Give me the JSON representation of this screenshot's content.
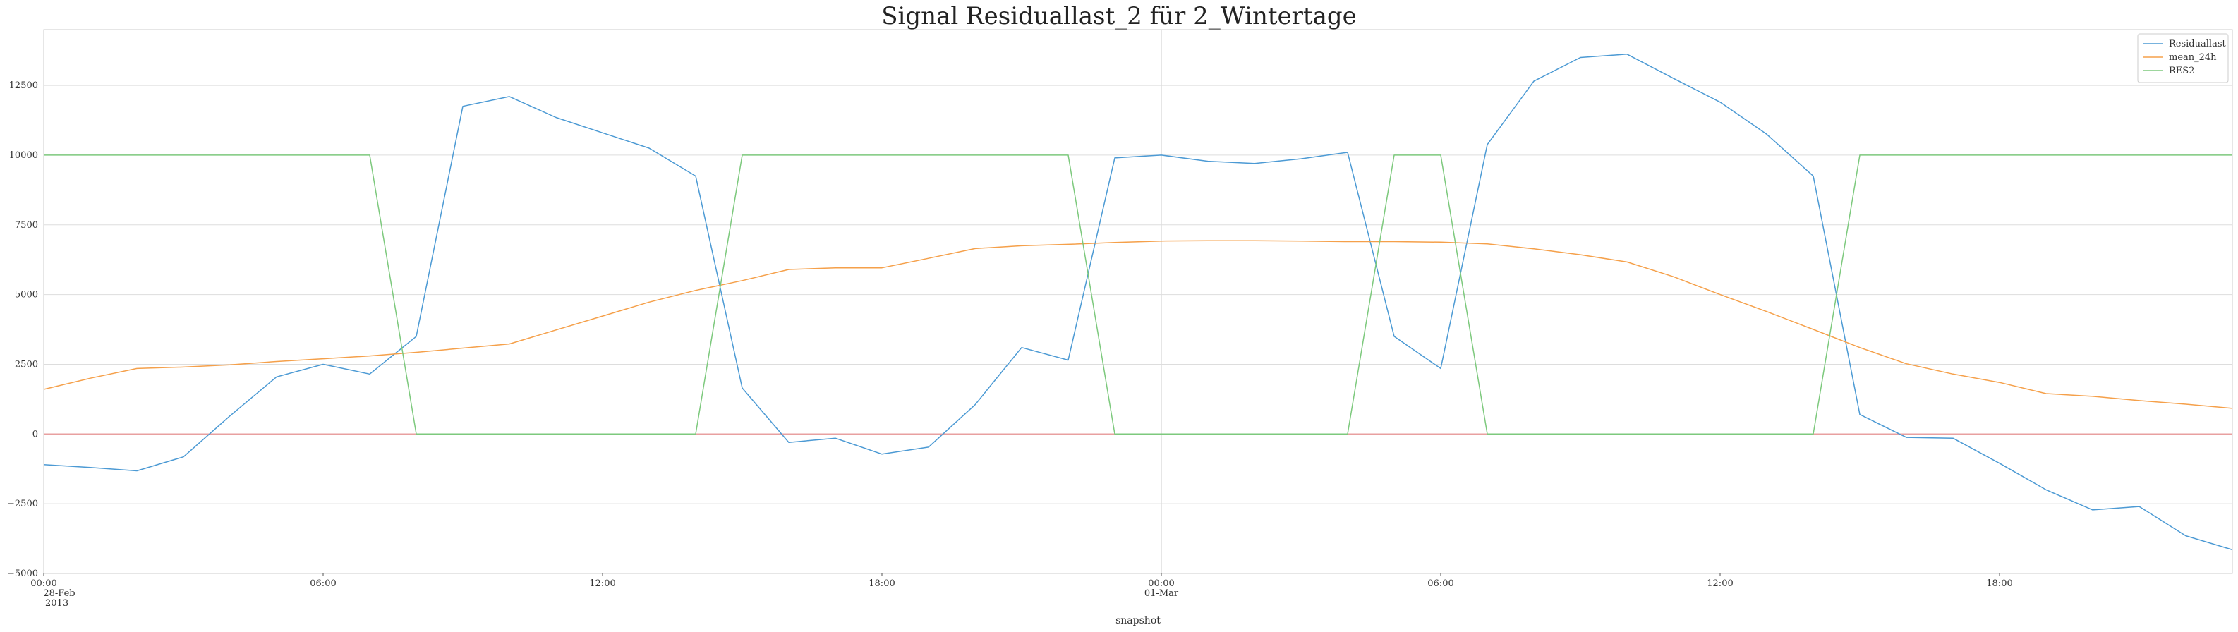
{
  "chart_data": {
    "type": "line",
    "title": "Signal Residuallast_2 für 2_Wintertage",
    "xlabel": "snapshot",
    "ylabel": "",
    "x": [
      "2013-02-28 00:00",
      "2013-02-28 01:00",
      "2013-02-28 02:00",
      "2013-02-28 03:00",
      "2013-02-28 04:00",
      "2013-02-28 05:00",
      "2013-02-28 06:00",
      "2013-02-28 07:00",
      "2013-02-28 08:00",
      "2013-02-28 09:00",
      "2013-02-28 10:00",
      "2013-02-28 11:00",
      "2013-02-28 12:00",
      "2013-02-28 13:00",
      "2013-02-28 14:00",
      "2013-02-28 15:00",
      "2013-02-28 16:00",
      "2013-02-28 17:00",
      "2013-02-28 18:00",
      "2013-02-28 19:00",
      "2013-02-28 20:00",
      "2013-02-28 21:00",
      "2013-02-28 22:00",
      "2013-02-28 23:00",
      "2013-03-01 00:00",
      "2013-03-01 01:00",
      "2013-03-01 02:00",
      "2013-03-01 03:00",
      "2013-03-01 04:00",
      "2013-03-01 05:00",
      "2013-03-01 06:00",
      "2013-03-01 07:00",
      "2013-03-01 08:00",
      "2013-03-01 09:00",
      "2013-03-01 10:00",
      "2013-03-01 11:00",
      "2013-03-01 12:00",
      "2013-03-01 13:00",
      "2013-03-01 14:00",
      "2013-03-01 15:00",
      "2013-03-01 16:00",
      "2013-03-01 17:00",
      "2013-03-01 18:00",
      "2013-03-01 19:00",
      "2013-03-01 20:00",
      "2013-03-01 21:00",
      "2013-03-01 22:00",
      "2013-03-01 23:00"
    ],
    "series": [
      {
        "name": "Residuallast",
        "color": "#4c9ad4",
        "values": [
          -1100,
          -1200,
          -1320,
          -820,
          650,
          2050,
          2500,
          2150,
          3500,
          11750,
          12100,
          11350,
          10800,
          10250,
          9250,
          1650,
          -300,
          -150,
          -720,
          -470,
          1050,
          3100,
          2650,
          9900,
          10000,
          9780,
          9700,
          9870,
          10100,
          3500,
          2350,
          10380,
          12650,
          13500,
          13620,
          12750,
          11900,
          10750,
          9250,
          700,
          -120,
          -150,
          -1050,
          -2000,
          -2720,
          -2600,
          -3650,
          -4150
        ]
      },
      {
        "name": "mean_24h",
        "color": "#f5a04a",
        "values": [
          1600,
          2000,
          2350,
          2400,
          2480,
          2600,
          2700,
          2800,
          2930,
          3080,
          3230,
          3730,
          4230,
          4730,
          5150,
          5500,
          5900,
          5960,
          5960,
          6300,
          6650,
          6750,
          6800,
          6870,
          6920,
          6930,
          6930,
          6920,
          6900,
          6900,
          6880,
          6820,
          6640,
          6430,
          6170,
          5640,
          5000,
          4390,
          3750,
          3100,
          2520,
          2150,
          1850,
          1450,
          1350,
          1200,
          1070,
          920
        ]
      },
      {
        "name": "RES2",
        "color": "#7dc97d",
        "values": [
          10000,
          10000,
          10000,
          10000,
          10000,
          10000,
          10000,
          10000,
          0,
          0,
          0,
          0,
          0,
          0,
          0,
          10000,
          10000,
          10000,
          10000,
          10000,
          10000,
          10000,
          10000,
          0,
          0,
          0,
          0,
          0,
          0,
          10000,
          10000,
          0,
          0,
          0,
          0,
          0,
          0,
          0,
          0,
          10000,
          10000,
          10000,
          10000,
          10000,
          10000,
          10000,
          10000,
          10000
        ]
      }
    ],
    "y_ticks": [
      -5000,
      -2500,
      0,
      2500,
      5000,
      7500,
      10000,
      12500
    ],
    "y_tick_labels": [
      "−5000",
      "−2500",
      "0",
      "2500",
      "5000",
      "7500",
      "10000",
      "12500"
    ],
    "ylim": [
      -5000,
      14500
    ],
    "x_ticks": [
      {
        "index": 0,
        "lines": [
          "00:00",
          "28-Feb",
          "2013"
        ]
      },
      {
        "index": 6,
        "lines": [
          "06:00"
        ]
      },
      {
        "index": 12,
        "lines": [
          "12:00"
        ]
      },
      {
        "index": 18,
        "lines": [
          "18:00"
        ]
      },
      {
        "index": 24,
        "lines": [
          "00:00",
          "01-Mar"
        ]
      },
      {
        "index": 30,
        "lines": [
          "06:00"
        ]
      },
      {
        "index": 36,
        "lines": [
          "12:00"
        ]
      },
      {
        "index": 42,
        "lines": [
          "18:00"
        ]
      }
    ],
    "zero_line_color": "#e8a0a0",
    "grid": true,
    "legend_position": "top-right"
  }
}
